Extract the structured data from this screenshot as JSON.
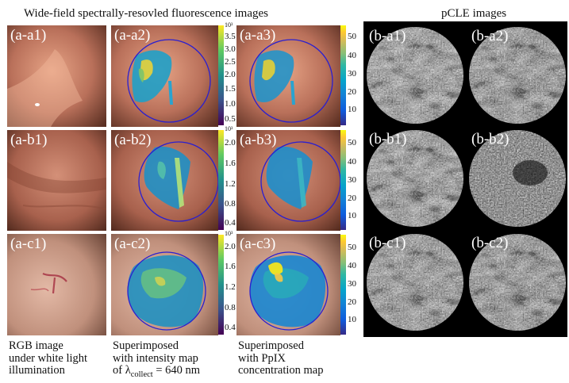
{
  "titles": {
    "widefield": "Wide-field spectrally-resovled fluorescence images",
    "pcle": "pCLE images"
  },
  "panels": {
    "a_a1": "(a-a1)",
    "a_a2": "(a-a2)",
    "a_a3": "(a-a3)",
    "a_b1": "(a-b1)",
    "a_b2": "(a-b2)",
    "a_b3": "(a-b3)",
    "a_c1": "(a-c1)",
    "a_c2": "(a-c2)",
    "a_c3": "(a-c3)",
    "b_a1": "(b-a1)",
    "b_a2": "(b-a2)",
    "b_b1": "(b-b1)",
    "b_b2": "(b-b2)",
    "b_c1": "(b-c1)",
    "b_c2": "(b-c2)"
  },
  "colorbars": {
    "intensity_row_a": {
      "exponent": "10³",
      "ticks": [
        "3.5",
        "3.0",
        "2.5",
        "2.0",
        "1.5",
        "1.0",
        "0.5"
      ]
    },
    "intensity_row_b": {
      "exponent": "10³",
      "ticks": [
        "2.0",
        "1.6",
        "1.2",
        "0.8",
        "0.4"
      ]
    },
    "intensity_row_c": {
      "exponent": "10³",
      "ticks": [
        "2.0",
        "1.6",
        "1.2",
        "0.8",
        "0.4"
      ]
    },
    "ppix": {
      "ticks": [
        "50",
        "40",
        "30",
        "20",
        "10"
      ]
    }
  },
  "captions": {
    "col1": [
      "RGB image",
      "under white light",
      "illumination"
    ],
    "col2_line1": "Superimposed",
    "col2_line2": "with intensity map",
    "col2_line3_pre": "of λ",
    "col2_line3_sub": "collect",
    "col2_line3_post": " = 640 nm",
    "col3": [
      "Superimposed",
      "with PpIX",
      "concentration map"
    ]
  },
  "colors": {
    "tissue": "#b8705a",
    "circle": "#2a1fd0",
    "viridis": [
      "#440154",
      "#3b528b",
      "#21918c",
      "#5ec962",
      "#fde725"
    ],
    "parula": [
      "#352a87",
      "#0f5cdd",
      "#1481d6",
      "#06a4ca",
      "#2eb7a4",
      "#87bf77",
      "#d1bb59",
      "#fec832",
      "#f9fb0e"
    ]
  }
}
